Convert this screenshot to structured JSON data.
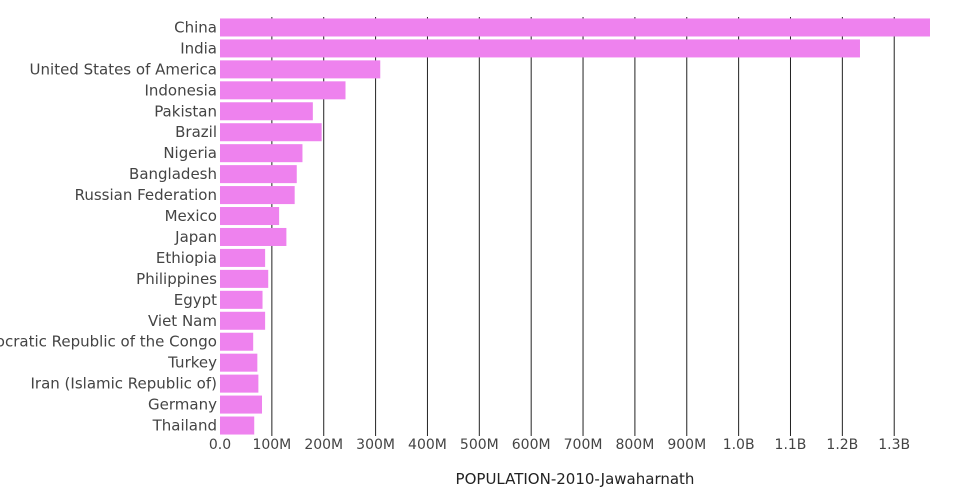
{
  "chart_data": {
    "type": "bar",
    "orientation": "horizontal",
    "title": "",
    "xlabel": "POPULATION-2010-Jawaharnath",
    "ylabel": "",
    "categories": [
      "China",
      "India",
      "United States of America",
      "Indonesia",
      "Pakistan",
      "Brazil",
      "Nigeria",
      "Bangladesh",
      "Russian Federation",
      "Mexico",
      "Japan",
      "Ethiopia",
      "Philippines",
      "Egypt",
      "Viet Nam",
      "Democratic Republic of the Congo",
      "Turkey",
      "Iran (Islamic Republic of)",
      "Germany",
      "Thailand"
    ],
    "values": [
      1369000000,
      1234000000,
      309000000,
      242000000,
      179000000,
      196000000,
      159000000,
      148000000,
      144000000,
      114000000,
      128000000,
      87000000,
      93000000,
      82000000,
      87000000,
      64000000,
      72000000,
      74000000,
      81000000,
      66000000
    ],
    "xlim": [
      0,
      1369000000
    ],
    "x_ticks": [
      0,
      100000000,
      200000000,
      300000000,
      400000000,
      500000000,
      600000000,
      700000000,
      800000000,
      900000000,
      1000000000,
      1100000000,
      1200000000,
      1300000000
    ],
    "x_tick_labels": [
      "0.0",
      "100M",
      "200M",
      "300M",
      "400M",
      "500M",
      "600M",
      "700M",
      "800M",
      "900M",
      "1.0B",
      "1.1B",
      "1.2B",
      "1.3B"
    ],
    "grid": "vertical",
    "bar_color": "#ee82ee",
    "grid_color": "#222222"
  }
}
